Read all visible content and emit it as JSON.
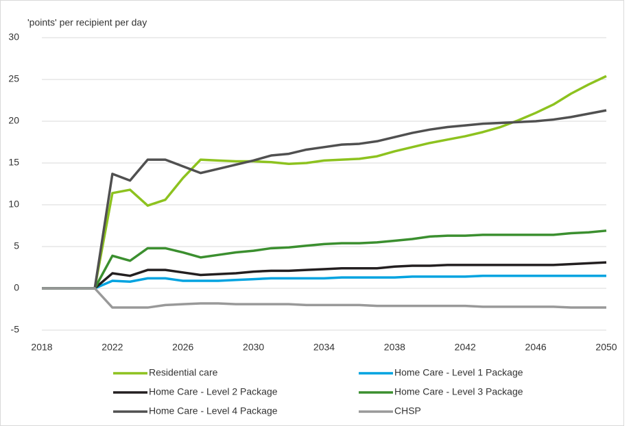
{
  "chart_data": {
    "type": "line",
    "y_label": "'points' per recipient per day",
    "x": [
      2018,
      2019,
      2020,
      2021,
      2022,
      2023,
      2024,
      2025,
      2026,
      2027,
      2028,
      2029,
      2030,
      2031,
      2032,
      2033,
      2034,
      2035,
      2036,
      2037,
      2038,
      2039,
      2040,
      2041,
      2042,
      2043,
      2044,
      2045,
      2046,
      2047,
      2048,
      2049,
      2050
    ],
    "xlim": [
      2018,
      2050
    ],
    "xticks": [
      2018,
      2022,
      2026,
      2030,
      2034,
      2038,
      2042,
      2046,
      2050
    ],
    "ylim": [
      -5,
      30
    ],
    "yticks": [
      -5,
      0,
      5,
      10,
      15,
      20,
      25,
      30
    ],
    "grid": true,
    "legend": "bottom",
    "series": [
      {
        "name": "Residential care",
        "color": "#8dc21f",
        "values": [
          0,
          0,
          0,
          0,
          11.4,
          11.8,
          9.9,
          10.6,
          13.2,
          15.4,
          15.3,
          15.2,
          15.2,
          15.1,
          14.9,
          15.0,
          15.3,
          15.4,
          15.5,
          15.8,
          16.4,
          16.9,
          17.4,
          17.8,
          18.2,
          18.7,
          19.3,
          20.1,
          21.0,
          22.0,
          23.3,
          24.4,
          25.4
        ]
      },
      {
        "name": "Home Care - Level 1 Package",
        "color": "#00a3e0",
        "values": [
          0,
          0,
          0,
          0,
          0.9,
          0.8,
          1.2,
          1.2,
          0.9,
          0.9,
          0.9,
          1.0,
          1.1,
          1.2,
          1.2,
          1.2,
          1.2,
          1.3,
          1.3,
          1.3,
          1.3,
          1.4,
          1.4,
          1.4,
          1.4,
          1.5,
          1.5,
          1.5,
          1.5,
          1.5,
          1.5,
          1.5,
          1.5
        ]
      },
      {
        "name": "Home Care - Level 2 Package",
        "color": "#231f20",
        "values": [
          0,
          0,
          0,
          0,
          1.8,
          1.5,
          2.2,
          2.2,
          1.9,
          1.6,
          1.7,
          1.8,
          2.0,
          2.1,
          2.1,
          2.2,
          2.3,
          2.4,
          2.4,
          2.4,
          2.6,
          2.7,
          2.7,
          2.8,
          2.8,
          2.8,
          2.8,
          2.8,
          2.8,
          2.8,
          2.9,
          3.0,
          3.1
        ]
      },
      {
        "name": "Home Care - Level 3 Package",
        "color": "#3b8f2f",
        "values": [
          0,
          0,
          0,
          0,
          3.9,
          3.3,
          4.8,
          4.8,
          4.3,
          3.7,
          4.0,
          4.3,
          4.5,
          4.8,
          4.9,
          5.1,
          5.3,
          5.4,
          5.4,
          5.5,
          5.7,
          5.9,
          6.2,
          6.3,
          6.3,
          6.4,
          6.4,
          6.4,
          6.4,
          6.4,
          6.6,
          6.7,
          6.9
        ]
      },
      {
        "name": "Home Care - Level 4 Package",
        "color": "#505050",
        "values": [
          0,
          0,
          0,
          0,
          13.7,
          12.9,
          15.4,
          15.4,
          14.6,
          13.8,
          14.3,
          14.8,
          15.3,
          15.9,
          16.1,
          16.6,
          16.9,
          17.2,
          17.3,
          17.6,
          18.1,
          18.6,
          19.0,
          19.3,
          19.5,
          19.7,
          19.8,
          19.9,
          20.0,
          20.2,
          20.5,
          20.9,
          21.3
        ]
      },
      {
        "name": "CHSP",
        "color": "#999999",
        "values": [
          0,
          0,
          0,
          0,
          -2.3,
          -2.3,
          -2.3,
          -2.0,
          -1.9,
          -1.8,
          -1.8,
          -1.9,
          -1.9,
          -1.9,
          -1.9,
          -2.0,
          -2.0,
          -2.0,
          -2.0,
          -2.1,
          -2.1,
          -2.1,
          -2.1,
          -2.1,
          -2.1,
          -2.2,
          -2.2,
          -2.2,
          -2.2,
          -2.2,
          -2.3,
          -2.3,
          -2.3
        ]
      }
    ]
  }
}
